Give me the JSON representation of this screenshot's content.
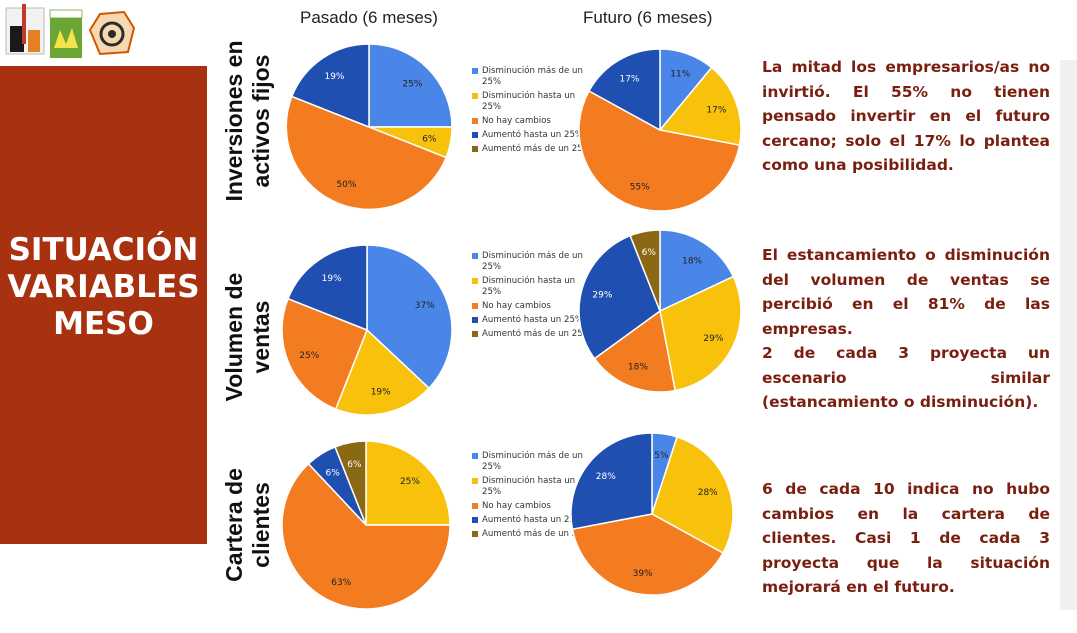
{
  "side_panel": {
    "title_lines": [
      "SITUACIÓN",
      "VARIABLES",
      "MESO"
    ]
  },
  "column_headers": {
    "past": "Pasado (6 meses)",
    "future": "Futuro (6 meses)"
  },
  "legend_entries": [
    "Disminución más de un 25%",
    "Disminución hasta un 25%",
    "No hay cambios",
    "Aumentó hasta un 25%",
    "Aumentó más de un 25%"
  ],
  "colors": {
    "Disminución más de un 25%": "#4a86e8",
    "Disminución hasta un 25%": "#f7c10c",
    "No hay cambios": "#f47c20",
    "Aumentó hasta un 25%": "#1f4fb0",
    "Aumentó más de un 25%": "#8b6914",
    "panel_red": "#a8310f",
    "text_red": "#7a1f10"
  },
  "rows": [
    {
      "label_lines": [
        "Inversiones en",
        "activos fijos"
      ],
      "description": [
        "La mitad los empresarios/as no invirtió. El 55% no tienen pensado invertir en el futuro cercano; solo el 17% lo plantea como una posibilidad."
      ]
    },
    {
      "label_lines": [
        "Volumen de",
        "ventas"
      ],
      "description": [
        "El estancamiento o disminución del volumen de ventas se percibió en el 81% de las empresas.",
        "2 de cada 3 proyecta un escenario similar (estancamiento o disminución)."
      ]
    },
    {
      "label_lines": [
        "Cartera de",
        "clientes"
      ],
      "description": [
        "6 de cada 10 indica no hubo cambios en la cartera de clientes. Casi 1 de cada 3 proyecta que la situación mejorará en el futuro."
      ]
    }
  ],
  "chart_data": [
    {
      "type": "pie",
      "title": "Inversiones en activos fijos — Pasado (6 meses)",
      "slices": [
        {
          "category": "Disminución más de un 25%",
          "value": 25,
          "label": "25%"
        },
        {
          "category": "Disminución hasta un 25%",
          "value": 6,
          "label": "6%"
        },
        {
          "category": "No hay cambios",
          "value": 50,
          "label": "50%"
        },
        {
          "category": "Aumentó hasta un 25%",
          "value": 19,
          "label": "19%"
        }
      ]
    },
    {
      "type": "pie",
      "title": "Inversiones en activos fijos — Futuro (6 meses)",
      "slices": [
        {
          "category": "Disminución más de un 25%",
          "value": 11,
          "label": "11%"
        },
        {
          "category": "Disminución hasta un 25%",
          "value": 17,
          "label": "17%"
        },
        {
          "category": "No hay cambios",
          "value": 55,
          "label": "55%"
        },
        {
          "category": "Aumentó hasta un 25%",
          "value": 17,
          "label": "17%"
        }
      ]
    },
    {
      "type": "pie",
      "title": "Volumen de ventas — Pasado (6 meses)",
      "slices": [
        {
          "category": "Disminución más de un 25%",
          "value": 37,
          "label": "37%"
        },
        {
          "category": "Disminución hasta un 25%",
          "value": 19,
          "label": "19%"
        },
        {
          "category": "No hay cambios",
          "value": 25,
          "label": "25%"
        },
        {
          "category": "Aumentó hasta un 25%",
          "value": 19,
          "label": "19%"
        }
      ]
    },
    {
      "type": "pie",
      "title": "Volumen de ventas — Futuro (6 meses)",
      "slices": [
        {
          "category": "Disminución más de un 25%",
          "value": 18,
          "label": "18%"
        },
        {
          "category": "Disminución hasta un 25%",
          "value": 29,
          "label": "29%"
        },
        {
          "category": "No hay cambios",
          "value": 18,
          "label": "18%"
        },
        {
          "category": "Aumentó hasta un 25%",
          "value": 29,
          "label": "29%"
        },
        {
          "category": "Aumentó más de un 25%",
          "value": 6,
          "label": "6%"
        }
      ]
    },
    {
      "type": "pie",
      "title": "Cartera de clientes — Pasado (6 meses)",
      "slices": [
        {
          "category": "Disminución hasta un 25%",
          "value": 25,
          "label": "25%"
        },
        {
          "category": "No hay cambios",
          "value": 63,
          "label": "63%"
        },
        {
          "category": "Aumentó hasta un 25%",
          "value": 6,
          "label": "6%"
        },
        {
          "category": "Aumentó más de un 25%",
          "value": 6,
          "label": "6%"
        }
      ]
    },
    {
      "type": "pie",
      "title": "Cartera de clientes — Futuro (6 meses)",
      "slices": [
        {
          "category": "Disminución más de un 25%",
          "value": 5,
          "label": "5%"
        },
        {
          "category": "Disminución hasta un 25%",
          "value": 28,
          "label": "28%"
        },
        {
          "category": "No hay cambios",
          "value": 39,
          "label": "39%"
        },
        {
          "category": "Aumentó hasta un 25%",
          "value": 28,
          "label": "28%"
        }
      ]
    }
  ]
}
